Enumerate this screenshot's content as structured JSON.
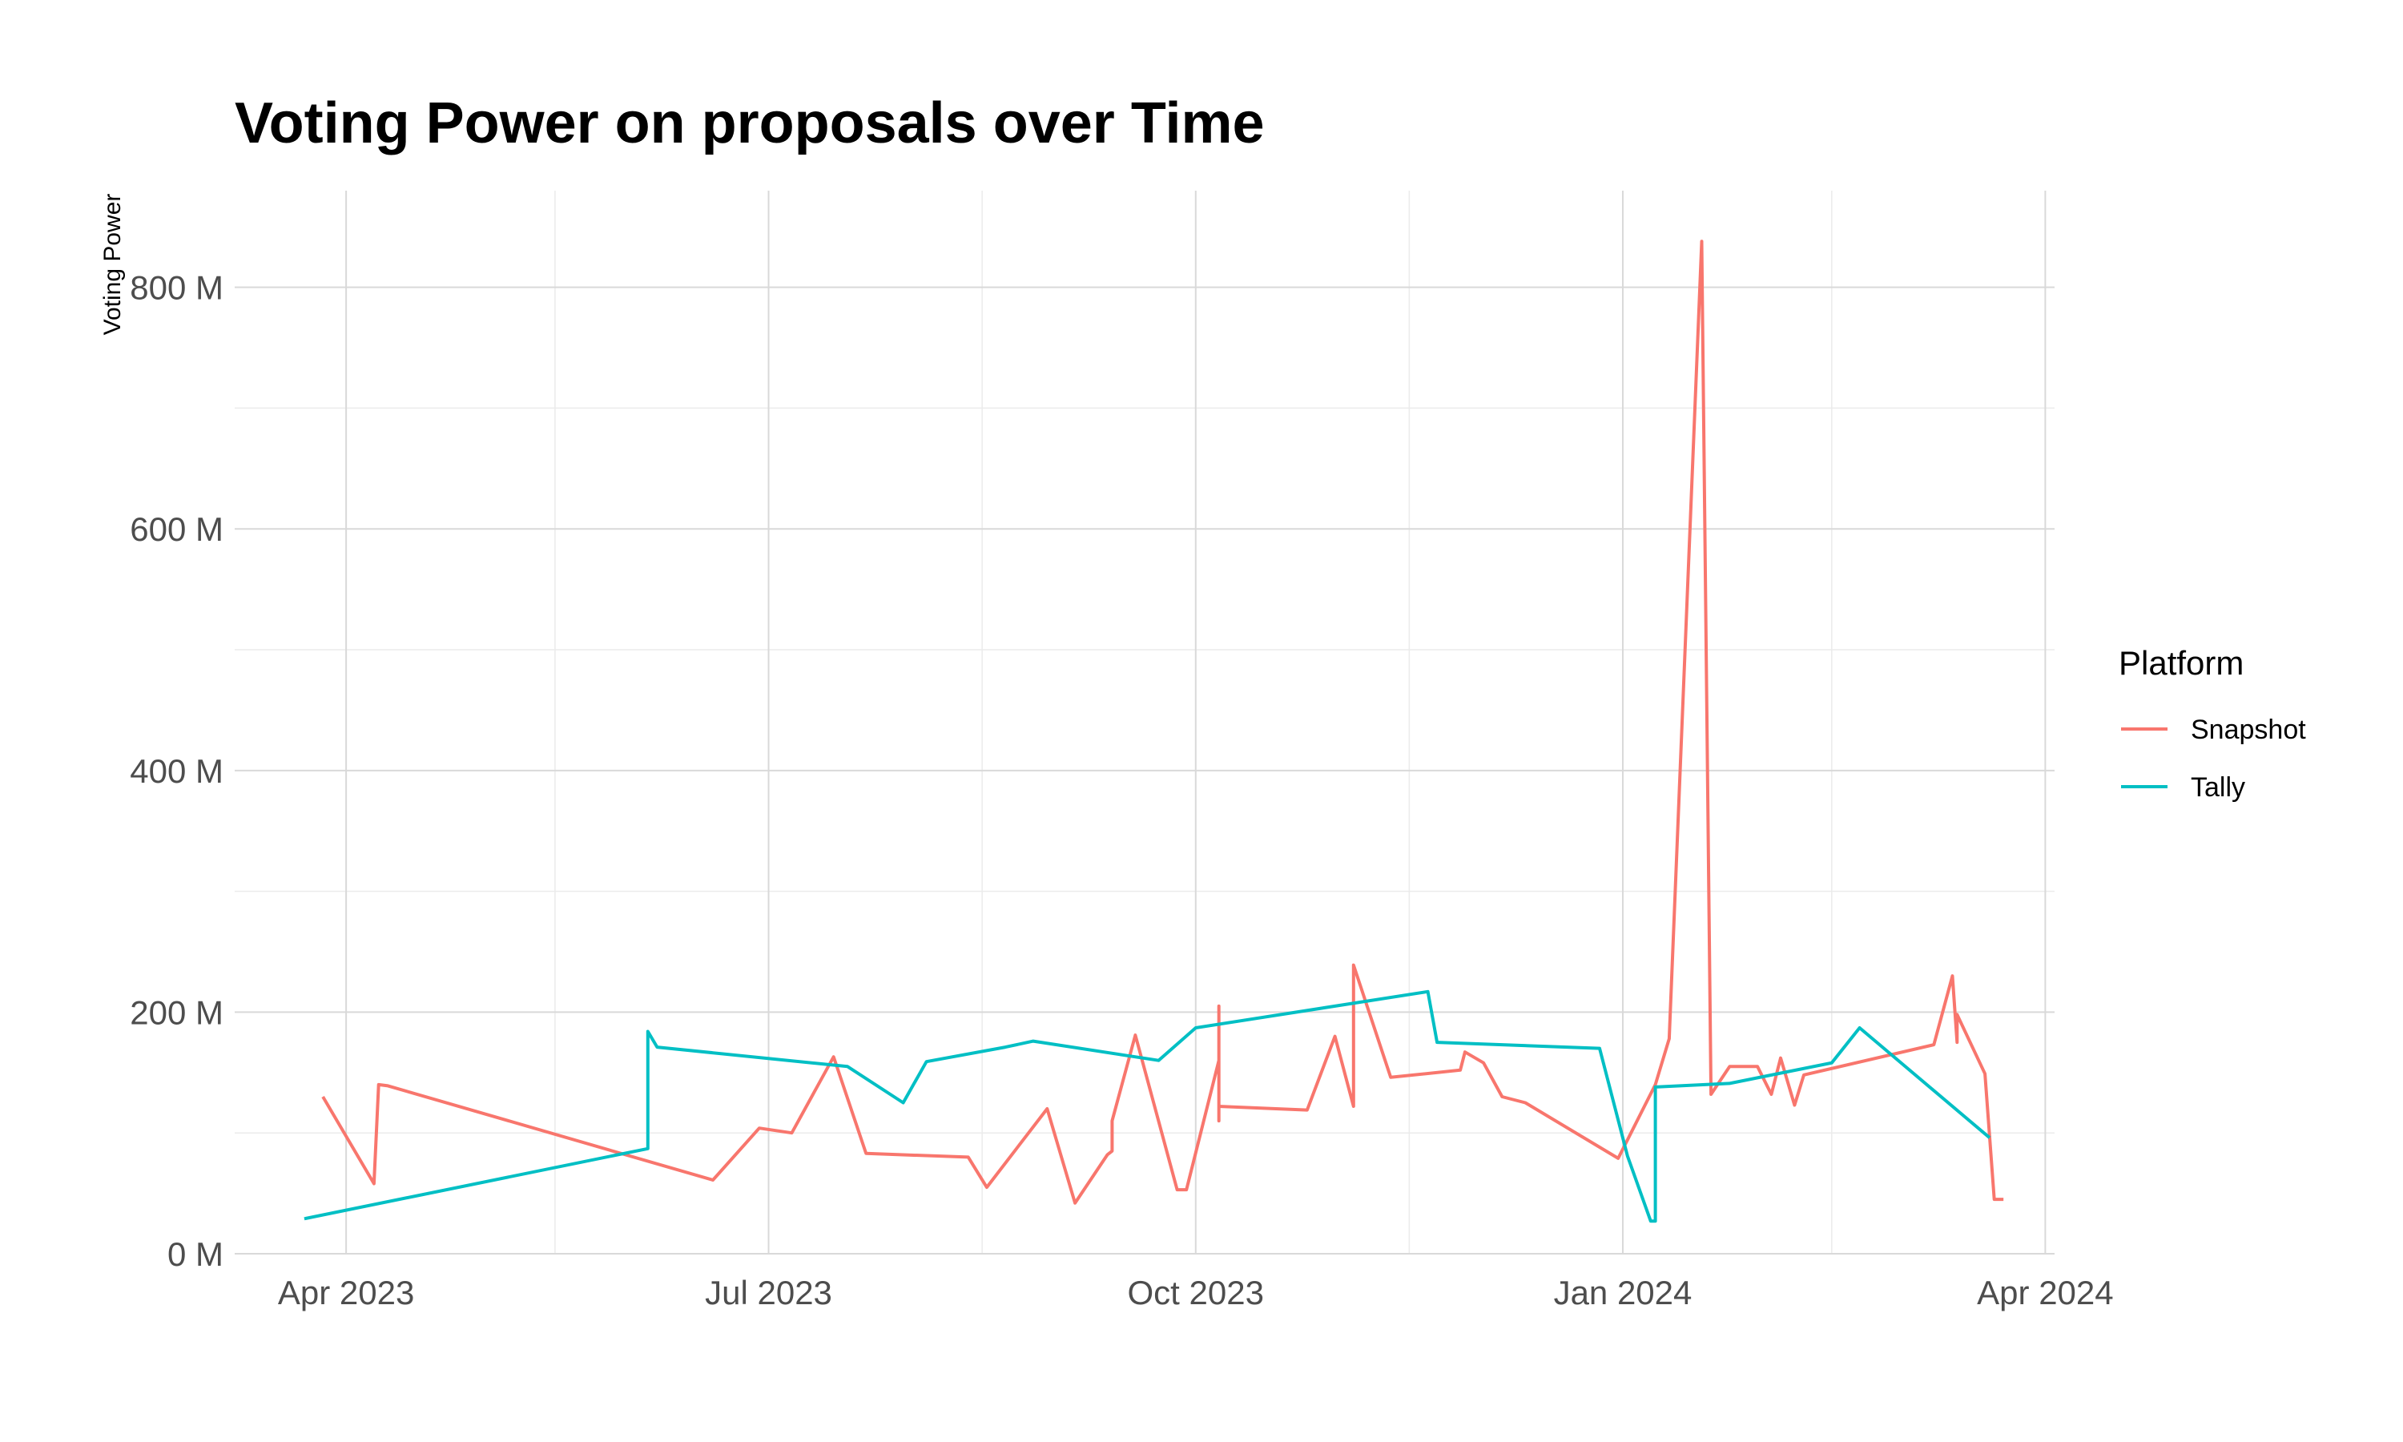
{
  "chart_data": {
    "type": "line",
    "title": "Voting Power on proposals over Time",
    "xlabel": "",
    "ylabel": "Voting Power",
    "x_ticks": [
      {
        "date": "2023-04-01",
        "label": "Apr 2023"
      },
      {
        "date": "2023-07-01",
        "label": "Jul 2023"
      },
      {
        "date": "2023-10-01",
        "label": "Oct 2023"
      },
      {
        "date": "2024-01-01",
        "label": "Jan 2024"
      },
      {
        "date": "2024-04-01",
        "label": "Apr 2024"
      }
    ],
    "x_minor_ticks": [
      "2023-05-16",
      "2023-08-16",
      "2023-11-16",
      "2024-02-15"
    ],
    "xlim": [
      "2023-03-08",
      "2024-04-03"
    ],
    "y_ticks": [
      {
        "value": 0,
        "label": "0 M"
      },
      {
        "value": 200,
        "label": "200 M"
      },
      {
        "value": 400,
        "label": "400 M"
      },
      {
        "value": 600,
        "label": "600 M"
      },
      {
        "value": 800,
        "label": "800 M"
      }
    ],
    "y_minor_ticks": [
      100,
      300,
      500,
      700
    ],
    "ylim": [
      0,
      880
    ],
    "y_unit": "M",
    "grid": true,
    "legend": {
      "title": "Platform",
      "position": "right"
    },
    "series": [
      {
        "name": "Snapshot",
        "color": "#F8766D",
        "points": [
          [
            "2023-03-27",
            130
          ],
          [
            "2023-04-07",
            58
          ],
          [
            "2023-04-08",
            140
          ],
          [
            "2023-04-10",
            139
          ],
          [
            "2023-06-19",
            61
          ],
          [
            "2023-06-29",
            104
          ],
          [
            "2023-07-06",
            100
          ],
          [
            "2023-07-15",
            163
          ],
          [
            "2023-07-22",
            83
          ],
          [
            "2023-08-13",
            80
          ],
          [
            "2023-08-17",
            55
          ],
          [
            "2023-08-30",
            120
          ],
          [
            "2023-09-05",
            42
          ],
          [
            "2023-09-12",
            82
          ],
          [
            "2023-09-13",
            85
          ],
          [
            "2023-09-13",
            110
          ],
          [
            "2023-09-18",
            181
          ],
          [
            "2023-09-27",
            53
          ],
          [
            "2023-09-29",
            53
          ],
          [
            "2023-10-06",
            160
          ],
          [
            "2023-10-06",
            205
          ],
          [
            "2023-10-06",
            110
          ],
          [
            "2023-10-06",
            122
          ],
          [
            "2023-10-25",
            119
          ],
          [
            "2023-10-31",
            180
          ],
          [
            "2023-11-04",
            122
          ],
          [
            "2023-11-04",
            239
          ],
          [
            "2023-11-12",
            146
          ],
          [
            "2023-11-27",
            152
          ],
          [
            "2023-11-28",
            167
          ],
          [
            "2023-12-02",
            158
          ],
          [
            "2023-12-06",
            130
          ],
          [
            "2023-12-11",
            125
          ],
          [
            "2023-12-31",
            79
          ],
          [
            "2024-01-08",
            140
          ],
          [
            "2024-01-11",
            178
          ],
          [
            "2024-01-18",
            838
          ],
          [
            "2024-01-20",
            132
          ],
          [
            "2024-01-24",
            155
          ],
          [
            "2024-01-30",
            155
          ],
          [
            "2024-02-02",
            132
          ],
          [
            "2024-02-04",
            162
          ],
          [
            "2024-02-07",
            123
          ],
          [
            "2024-02-09",
            148
          ],
          [
            "2024-03-08",
            173
          ],
          [
            "2024-03-12",
            230
          ],
          [
            "2024-03-13",
            175
          ],
          [
            "2024-03-13",
            198
          ],
          [
            "2024-03-19",
            149
          ],
          [
            "2024-03-21",
            45
          ],
          [
            "2024-03-23",
            45
          ]
        ]
      },
      {
        "name": "Tally",
        "color": "#00BFC4",
        "points": [
          [
            "2023-03-23",
            29
          ],
          [
            "2023-06-05",
            87
          ],
          [
            "2023-06-05",
            184
          ],
          [
            "2023-06-07",
            171
          ],
          [
            "2023-07-18",
            155
          ],
          [
            "2023-07-30",
            125
          ],
          [
            "2023-08-04",
            159
          ],
          [
            "2023-08-21",
            171
          ],
          [
            "2023-08-27",
            176
          ],
          [
            "2023-09-23",
            160
          ],
          [
            "2023-10-01",
            187
          ],
          [
            "2023-11-20",
            217
          ],
          [
            "2023-11-22",
            175
          ],
          [
            "2023-12-27",
            170
          ],
          [
            "2024-01-02",
            81
          ],
          [
            "2024-01-07",
            27
          ],
          [
            "2024-01-08",
            27
          ],
          [
            "2024-01-08",
            138
          ],
          [
            "2024-01-24",
            141
          ],
          [
            "2024-02-15",
            158
          ],
          [
            "2024-02-21",
            187
          ],
          [
            "2024-03-20",
            96
          ]
        ]
      }
    ]
  }
}
